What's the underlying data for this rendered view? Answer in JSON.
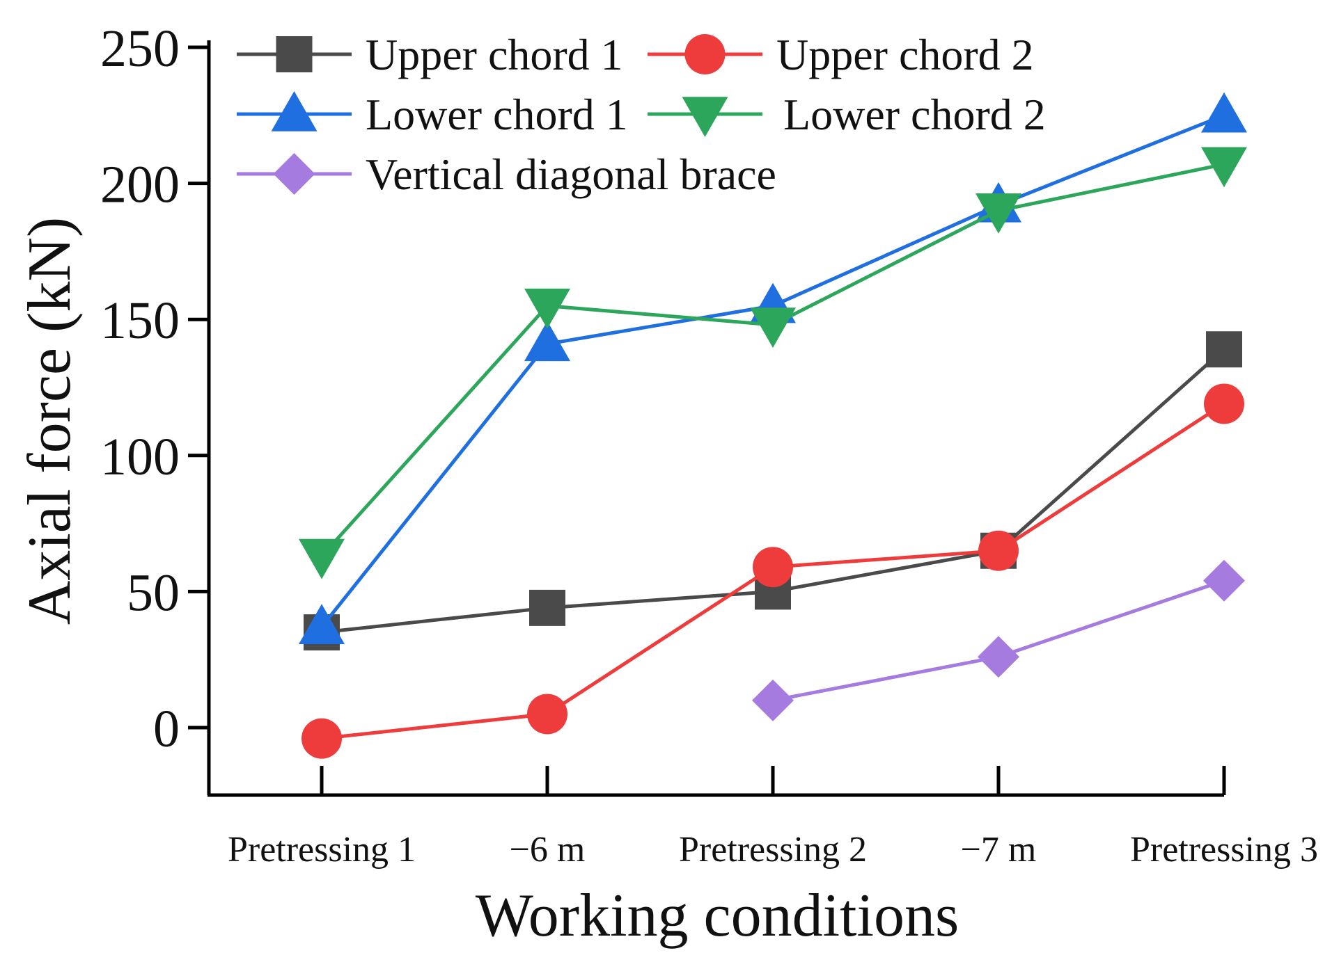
{
  "chart_data": {
    "type": "line",
    "title": "",
    "xlabel": "Working conditions",
    "ylabel": "Axial force (kN)",
    "categories": [
      "Pretressing 1",
      "−6 m",
      "Pretressing 2",
      "−7 m",
      "Pretressing 3"
    ],
    "ylim": [
      -25,
      250
    ],
    "yticks": [
      0,
      50,
      100,
      150,
      200,
      250
    ],
    "grid": false,
    "legend_position": "top-left",
    "series": [
      {
        "name": "Upper chord 1",
        "color": "#4a4a4a",
        "marker": "square",
        "values": [
          35,
          44,
          50,
          65,
          139
        ]
      },
      {
        "name": "Upper chord 2",
        "color": "#ee3b3b",
        "marker": "circle",
        "values": [
          -4,
          5,
          59,
          65,
          119
        ]
      },
      {
        "name": "Lower chord 1",
        "color": "#1f6fe0",
        "marker": "triangle-up",
        "values": [
          37,
          141,
          155,
          192,
          225
        ]
      },
      {
        "name": "Lower chord 2",
        "color": "#2ca65a",
        "marker": "triangle-down",
        "values": [
          63,
          155,
          148,
          190,
          207
        ]
      },
      {
        "name": "Vertical diagonal brace",
        "color": "#a57be0",
        "marker": "diamond",
        "values": [
          null,
          null,
          10,
          26,
          54
        ]
      }
    ]
  }
}
